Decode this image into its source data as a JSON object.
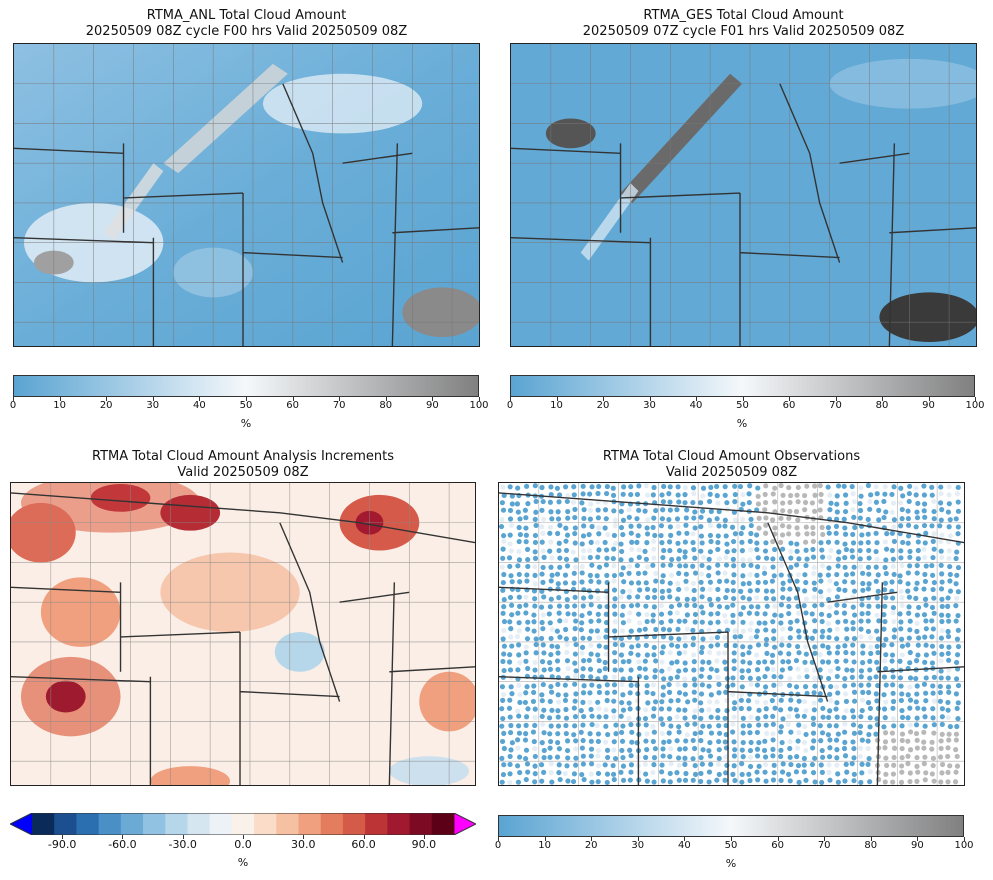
{
  "panels": {
    "anl": {
      "title1": "RTMA_ANL Total Cloud Amount",
      "title2": "20250509 08Z cycle F00 hrs Valid 20250509 08Z"
    },
    "ges": {
      "title1": "RTMA_GES Total Cloud Amount",
      "title2": "20250509 07Z cycle F01 hrs Valid 20250509 08Z"
    },
    "inc": {
      "title1": "RTMA Total Cloud Amount Analysis Increments",
      "title2": "Valid 20250509 08Z"
    },
    "obs": {
      "title1": "RTMA Total Cloud Amount Observations",
      "title2": "Valid 20250509 08Z"
    }
  },
  "colorbars": {
    "cloud": {
      "ticks": [
        "0",
        "10",
        "20",
        "30",
        "40",
        "50",
        "60",
        "70",
        "80",
        "90",
        "100"
      ],
      "unit": "%",
      "colors": [
        "#5aa4d2",
        "#f5f8fb",
        "#808080"
      ]
    },
    "increment": {
      "ticks": [
        "-90.0",
        "-60.0",
        "-30.0",
        "0.0",
        "30.0",
        "60.0",
        "90.0"
      ],
      "unit": "%",
      "under_color": "#0000ff",
      "over_color": "#ff00ff",
      "colors": [
        "#0a2a5a",
        "#1b4f8f",
        "#2c6fb1",
        "#4a90c6",
        "#6aaad5",
        "#92c2e1",
        "#b6d6ea",
        "#d5e6f1",
        "#edf2f6",
        "#faf1ea",
        "#fbdcc8",
        "#f6c0a2",
        "#f0a07e",
        "#e37d5d",
        "#d45b47",
        "#bd3437",
        "#a0192e",
        "#7c0a23",
        "#5c0018"
      ]
    }
  }
}
